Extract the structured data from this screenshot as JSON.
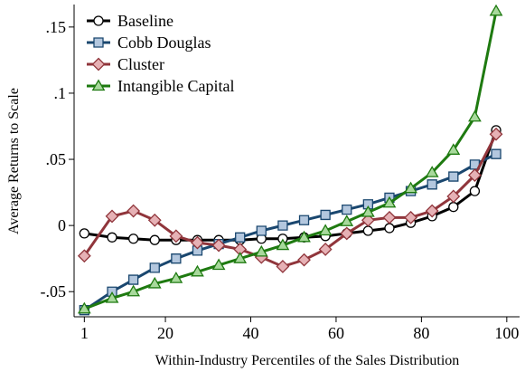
{
  "chart_data": {
    "type": "line",
    "x_label": "Within-Industry Percentiles of the Sales Distribution",
    "y_label": "Average Returns to Scale",
    "x": [
      1,
      7.5,
      12.5,
      17.5,
      22.5,
      27.5,
      32.5,
      37.5,
      42.5,
      47.5,
      52.5,
      57.5,
      62.5,
      67.5,
      72.5,
      77.5,
      82.5,
      87.5,
      92.5,
      97.5
    ],
    "series": [
      {
        "name": "Baseline",
        "color": "#000000",
        "marker": "circle",
        "marker_color": "#ffffff",
        "values": [
          -0.006,
          -0.009,
          -0.01,
          -0.011,
          -0.011,
          -0.011,
          -0.011,
          -0.011,
          -0.01,
          -0.01,
          -0.009,
          -0.008,
          -0.006,
          -0.004,
          -0.002,
          0.002,
          0.007,
          0.014,
          0.026,
          0.072
        ]
      },
      {
        "name": "Cobb Douglas",
        "color": "#1a476f",
        "marker": "square",
        "marker_color": "#b3c7de",
        "values": [
          -0.064,
          -0.05,
          -0.041,
          -0.032,
          -0.025,
          -0.019,
          -0.014,
          -0.009,
          -0.004,
          0.0,
          0.004,
          0.008,
          0.012,
          0.016,
          0.021,
          0.026,
          0.031,
          0.037,
          0.046,
          0.054
        ]
      },
      {
        "name": "Cluster",
        "color": "#90353b",
        "marker": "diamond",
        "marker_color": "#e6b1b5",
        "values": [
          -0.023,
          0.007,
          0.011,
          0.004,
          -0.008,
          -0.013,
          -0.015,
          -0.018,
          -0.024,
          -0.031,
          -0.026,
          -0.018,
          -0.006,
          0.004,
          0.006,
          0.006,
          0.011,
          0.022,
          0.038,
          0.069
        ]
      },
      {
        "name": "Intangible Capital",
        "color": "#1e7a10",
        "marker": "triangle",
        "marker_color": "#a8d99c",
        "values": [
          -0.063,
          -0.055,
          -0.05,
          -0.044,
          -0.04,
          -0.035,
          -0.03,
          -0.025,
          -0.02,
          -0.015,
          -0.009,
          -0.004,
          0.003,
          0.01,
          0.017,
          0.028,
          0.04,
          0.057,
          0.082,
          0.162
        ]
      }
    ],
    "xlim": [
      -1.4,
      103
    ],
    "ylim": [
      -0.069,
      0.167
    ],
    "xticks": [
      1,
      20,
      40,
      60,
      80,
      100
    ],
    "yticks": [
      {
        "value": -0.05,
        "label": "-.05"
      },
      0,
      {
        "value": 0.05,
        "label": ".05"
      },
      {
        "value": 0.1,
        "label": ".1"
      },
      {
        "value": 0.15,
        "label": ".15"
      }
    ],
    "legend": "top-left"
  }
}
